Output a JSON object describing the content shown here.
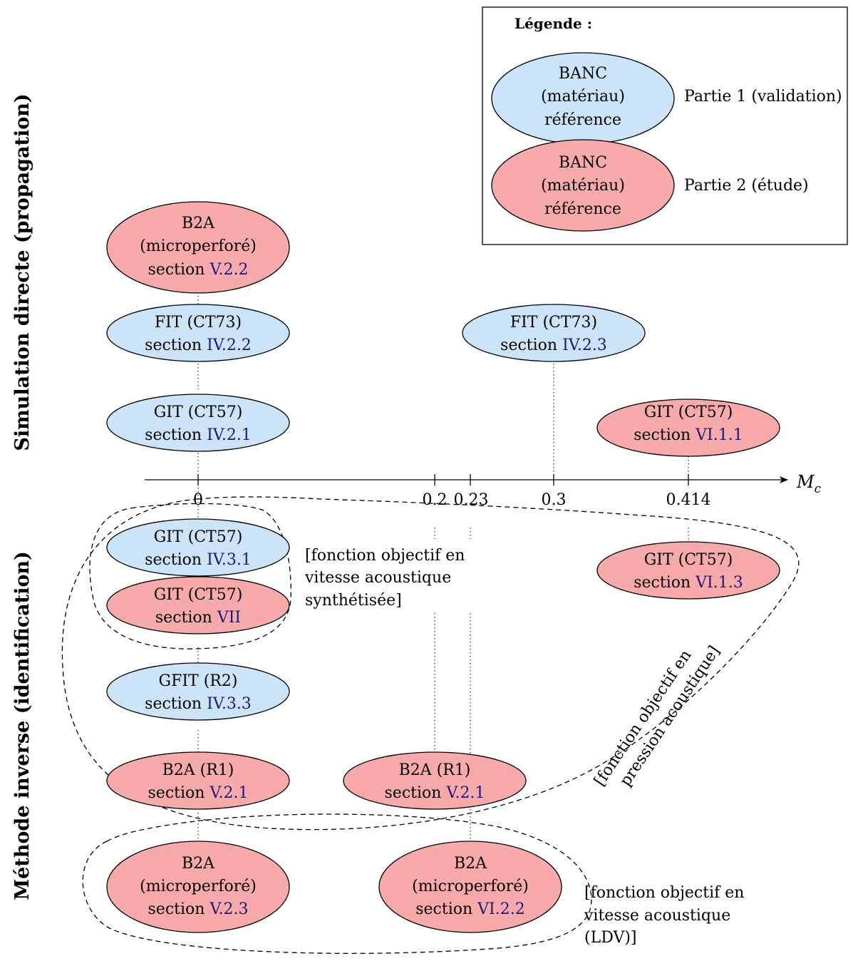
{
  "side_labels": {
    "top": "Simulation directe (propagation)",
    "bottom": "Méthode inverse (identification)"
  },
  "axis": {
    "label": "M",
    "label_sub": "c",
    "ticks": [
      "0",
      "0.2",
      "0.23",
      "0.3",
      "0.414"
    ]
  },
  "legend": {
    "title": "Légende :",
    "items": [
      {
        "l1": "BANC",
        "l2": "(matériau)",
        "l3": "référence",
        "desc": "Partie 1 (validation)",
        "color": "#cce4fa"
      },
      {
        "l1": "BANC",
        "l2": "(matériau)",
        "l3": "référence",
        "desc": "Partie 2 (étude)",
        "color": "#f8aaaa"
      }
    ]
  },
  "colors": {
    "part1": "#cce4fa",
    "part2": "#f8aaaa",
    "ref": "#1a1a7a"
  },
  "nodes": {
    "b2a_micro_v22": {
      "l1": "B2A",
      "l2": "(microperforé)",
      "sec": "section ",
      "ref": "V.2.2"
    },
    "fit_iv22": {
      "l1": "FIT (CT73)",
      "sec": "section ",
      "ref": "IV.2.2"
    },
    "fit_iv23": {
      "l1": "FIT (CT73)",
      "sec": "section ",
      "ref": "IV.2.3"
    },
    "git_iv21": {
      "l1": "GIT (CT57)",
      "sec": "section ",
      "ref": "IV.2.1"
    },
    "git_vi11": {
      "l1": "GIT (CT57)",
      "sec": "section ",
      "ref": "VI.1.1"
    },
    "git_iv31": {
      "l1": "GIT (CT57)",
      "sec": "section ",
      "ref": "IV.3.1"
    },
    "git_vii": {
      "l1": "GIT (CT57)",
      "sec": "section ",
      "ref": "VII"
    },
    "git_vi13": {
      "l1": "GIT (CT57)",
      "sec": "section ",
      "ref": "VI.1.3"
    },
    "gfit_iv33": {
      "l1": "GFIT (R2)",
      "sec": "section ",
      "ref": "IV.3.3"
    },
    "b2a_r1_a": {
      "l1": "B2A (R1)",
      "sec": "section ",
      "ref": "V.2.1"
    },
    "b2a_r1_b": {
      "l1": "B2A (R1)",
      "sec": "section ",
      "ref": "V.2.1"
    },
    "b2a_micro_v23": {
      "l1": "B2A",
      "l2": "(microperforé)",
      "sec": "section ",
      "ref": "V.2.3"
    },
    "b2a_micro_vi22": {
      "l1": "B2A",
      "l2": "(microperforé)",
      "sec": "section ",
      "ref": "VI.2.2"
    }
  },
  "notes": {
    "synth": [
      "[fonction objectif en",
      "vitesse acoustique",
      "synthétisée]"
    ],
    "pression": [
      "[fonction objectif en",
      "pression acoustique]"
    ],
    "ldv": [
      "[fonction objectif en",
      "vitesse acoustique",
      "(LDV)]"
    ]
  }
}
